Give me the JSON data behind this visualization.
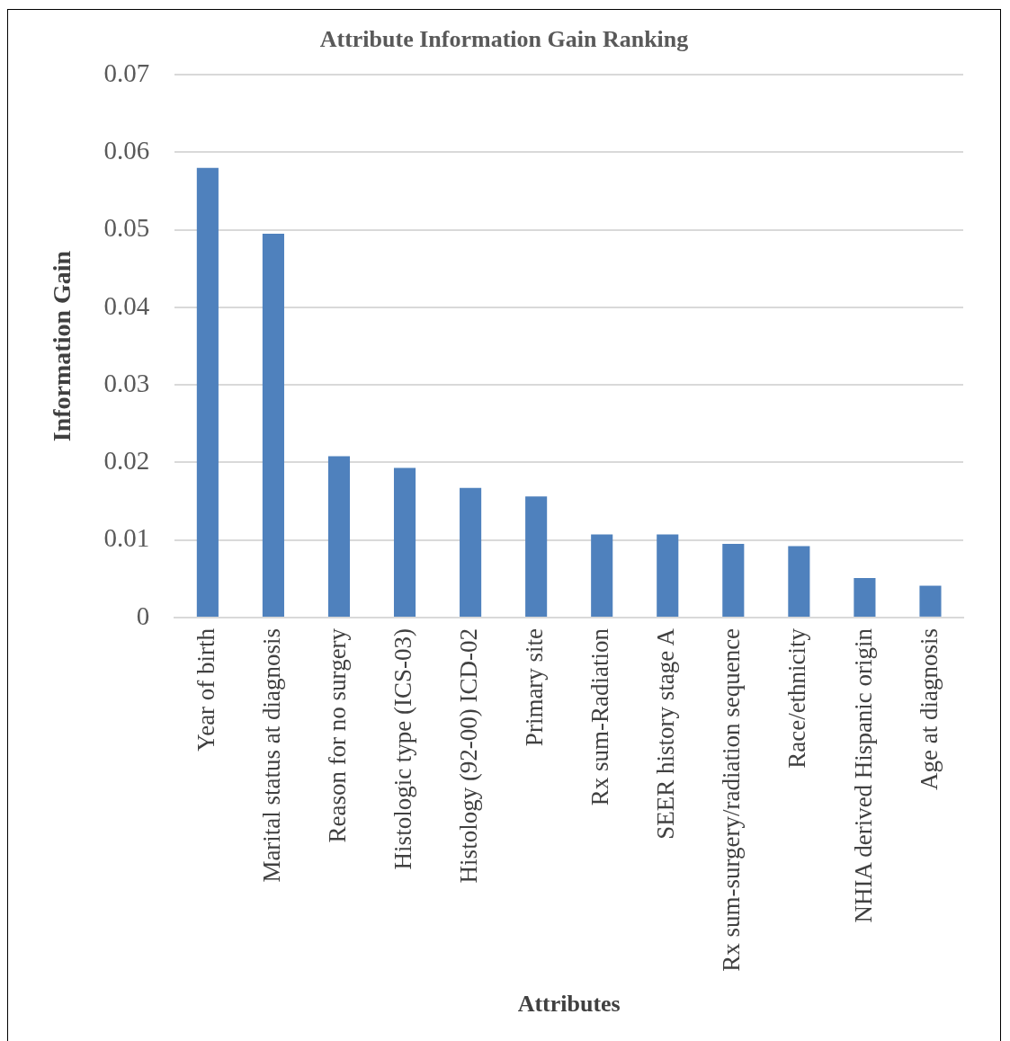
{
  "chart_data": {
    "type": "bar",
    "title": "Attribute Information Gain Ranking",
    "xlabel": "Attributes",
    "ylabel": "Information Gain",
    "categories": [
      "Year of birth",
      "Marital status at diagnosis",
      "Reason for no surgery",
      "Histologic type (ICS-03)",
      "Histology (92-00) ICD-02",
      "Primary site",
      "Rx sum-Radiation",
      "SEER history stage A",
      "Rx sum-surgery/radiation sequence",
      "Race/ethnicity",
      "NHIA derived Hispanic origin",
      "Age at diagnosis"
    ],
    "values": [
      0.058,
      0.0495,
      0.0208,
      0.0193,
      0.0167,
      0.0156,
      0.0107,
      0.0107,
      0.0095,
      0.0092,
      0.0051,
      0.0041
    ],
    "color": "#4f81bd",
    "ylim": [
      0,
      0.07
    ],
    "yticks": [
      0,
      0.01,
      0.02,
      0.03,
      0.04,
      0.05,
      0.06,
      0.07
    ],
    "grid": "y"
  }
}
